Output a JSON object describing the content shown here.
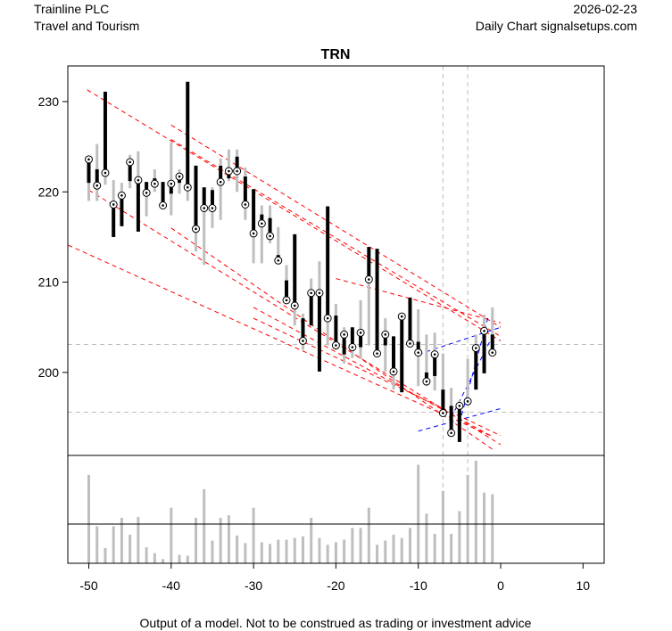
{
  "header": {
    "company": "Trainline PLC",
    "sector": "Travel and Tourism",
    "date": "2026-02-23",
    "source": "Daily Chart signalsetups.com"
  },
  "footer": "Output of a model. Not to be construed as trading or investment advice",
  "chart_data": {
    "type": "candlestick",
    "title": "TRN",
    "xlabel": "",
    "ylabel": "",
    "xlim": [
      -52.5,
      12.5
    ],
    "ylim": [
      190.7,
      234
    ],
    "x_ticks": [
      -50,
      -40,
      -30,
      -20,
      -10,
      0,
      10
    ],
    "y_ticks": [
      200,
      210,
      220,
      230
    ],
    "x": [
      -50,
      -49,
      -48,
      -47,
      -46,
      -45,
      -44,
      -43,
      -42,
      -41,
      -40,
      -39,
      -38,
      -37,
      -36,
      -35,
      -34,
      -33,
      -32,
      -31,
      -30,
      -29,
      -28,
      -27,
      -26,
      -25,
      -24,
      -23,
      -22,
      -21,
      -20,
      -19,
      -18,
      -17,
      -16,
      -15,
      -14,
      -13,
      -12,
      -11,
      -10,
      -9,
      -8,
      -7,
      -6,
      -5,
      -4,
      -3,
      -2,
      -1
    ],
    "open": [
      221,
      222.5,
      231.1,
      215,
      216.2,
      221.2,
      215.6,
      221.1,
      221.5,
      221.1,
      219.8,
      221,
      232.2,
      222.9,
      220.5,
      220.2,
      222.9,
      221.5,
      223.9,
      221.7,
      220.3,
      217.5,
      217.1,
      213,
      210.2,
      215.3,
      206,
      205.2,
      200.1,
      218.4,
      206.3,
      202,
      205,
      202.8,
      213.9,
      213.7,
      203,
      204,
      197.8,
      208.3,
      203.4,
      200,
      199.6,
      198.1,
      196.3,
      192.3,
      197,
      198.1,
      199.9,
      204.2
    ],
    "high": [
      223.8,
      225.3,
      231.1,
      221.3,
      221,
      224.1,
      224.5,
      221.1,
      222.5,
      221.1,
      225.5,
      222.5,
      232.2,
      222.9,
      220.5,
      220.5,
      223.7,
      224.7,
      224.7,
      222.7,
      220.3,
      218.5,
      218.5,
      216.1,
      211.9,
      215.3,
      206.5,
      210.4,
      212.3,
      218.4,
      207.6,
      205,
      205,
      208,
      213.9,
      213.7,
      206,
      204,
      206.2,
      208.3,
      207,
      204.2,
      204.4,
      202.1,
      198.3,
      196.9,
      201.5,
      204.2,
      206.4,
      207.2
    ],
    "low": [
      219,
      219,
      220.8,
      215,
      216.2,
      220.4,
      215.6,
      217.3,
      220,
      218.5,
      217.4,
      219.8,
      219,
      213.4,
      211.9,
      216,
      216.9,
      221.2,
      220,
      216.9,
      212.1,
      212.1,
      214.3,
      212,
      207.7,
      205.2,
      202.5,
      205.2,
      200.1,
      203,
      202.5,
      201,
      201.6,
      201.5,
      203,
      202.1,
      200.1,
      198.1,
      197.8,
      203,
      198.5,
      198.5,
      198,
      195.5,
      193.3,
      192.3,
      196.5,
      198.1,
      199.9,
      202.2
    ],
    "close": [
      223.6,
      220.7,
      222.1,
      218.6,
      219.6,
      223.3,
      221.3,
      219.9,
      220.9,
      218.5,
      220.9,
      221.7,
      220.5,
      215.9,
      218.2,
      218.2,
      221.1,
      222.3,
      222.3,
      218.6,
      215.4,
      216.5,
      215.1,
      212.4,
      208,
      207.4,
      203.5,
      208.8,
      208.8,
      206,
      203,
      204.2,
      202.8,
      204.4,
      210.3,
      202.1,
      204.2,
      200.1,
      206.2,
      203.2,
      202.2,
      199,
      202,
      195.5,
      193.3,
      196.3,
      196.8,
      202.7,
      204.6,
      202.2
    ],
    "volume_relative": [
      105,
      44,
      18,
      44,
      54,
      34,
      55,
      19,
      12,
      5,
      66,
      10,
      9,
      54,
      88,
      27,
      54,
      57,
      33,
      24,
      66,
      25,
      23,
      28,
      28,
      30,
      32,
      54,
      30,
      22,
      25,
      28,
      42,
      42,
      66,
      22,
      27,
      34,
      30,
      42,
      117,
      59,
      35,
      86,
      35,
      62,
      105,
      122,
      84,
      82
    ],
    "red_trendlines": [
      [
        [
          -50.2,
          231.3
        ],
        [
          0,
          203.5
        ]
      ],
      [
        [
          -50,
          220.2
        ],
        [
          0,
          192
        ]
      ],
      [
        [
          -52.5,
          214.1
        ],
        [
          -1,
          192.9
        ]
      ],
      [
        [
          -40,
          227.4
        ],
        [
          0,
          205
        ]
      ],
      [
        [
          -40,
          225.8
        ],
        [
          0,
          204
        ]
      ],
      [
        [
          -30,
          207.2
        ],
        [
          -1,
          192.9
        ]
      ],
      [
        [
          -30,
          206
        ],
        [
          0,
          193
        ]
      ],
      [
        [
          -20,
          210.4
        ],
        [
          0,
          205.5
        ]
      ],
      [
        [
          -40,
          216
        ],
        [
          -1,
          191.5
        ]
      ]
    ],
    "blue_trendlines": [
      [
        [
          -10,
          202
        ],
        [
          0,
          205
        ]
      ],
      [
        [
          -10,
          193.5
        ],
        [
          0,
          196
        ]
      ],
      [
        [
          -5,
          194.4
        ],
        [
          -1.5,
          206.2
        ]
      ],
      [
        [
          -6,
          195
        ],
        [
          -1,
          204
        ]
      ]
    ],
    "ref_vlines": [
      -7,
      -4
    ],
    "ref_hlines": [
      203.1,
      195.6
    ],
    "colors": {
      "wick": "#bebebe",
      "body": "#000000",
      "trend": "#ff0000",
      "signal": "#0000ff",
      "ref": "#bebebe"
    }
  }
}
